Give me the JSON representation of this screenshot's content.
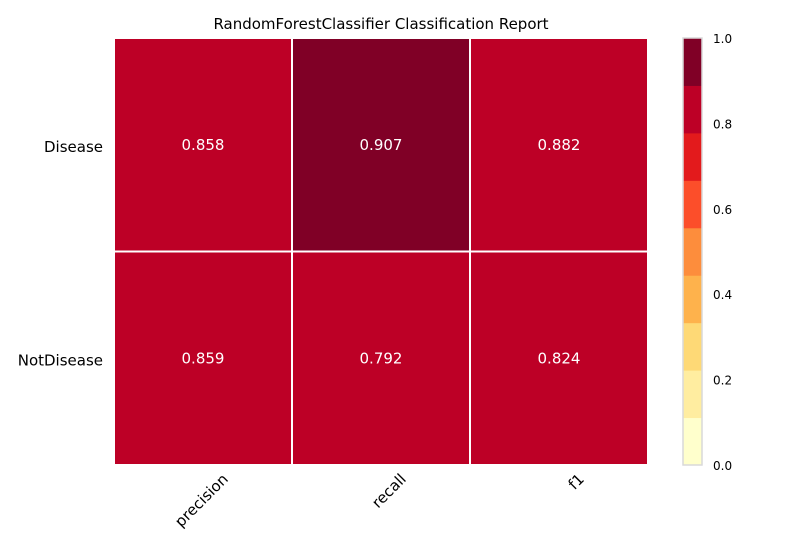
{
  "chart_data": {
    "type": "heatmap",
    "title": "RandomForestClassifier Classification Report",
    "rows": [
      "Disease",
      "NotDisease"
    ],
    "columns": [
      "precision",
      "recall",
      "f1"
    ],
    "values": [
      [
        0.858,
        0.907,
        0.882
      ],
      [
        0.859,
        0.792,
        0.824
      ]
    ],
    "value_labels": [
      [
        "0.858",
        "0.907",
        "0.882"
      ],
      [
        "0.859",
        "0.792",
        "0.824"
      ]
    ],
    "colorbar": {
      "range": [
        0.0,
        1.0
      ],
      "ticks": [
        "0.0",
        "0.2",
        "0.4",
        "0.6",
        "0.8",
        "1.0"
      ],
      "colors": [
        "#ffffcc",
        "#ffeda0",
        "#fed976",
        "#feb24c",
        "#fd8d3c",
        "#fc4e2a",
        "#e31a1c",
        "#bd0026",
        "#800026"
      ]
    },
    "grid_color": "#ffffff",
    "frame_color": "#d9d9d9"
  }
}
